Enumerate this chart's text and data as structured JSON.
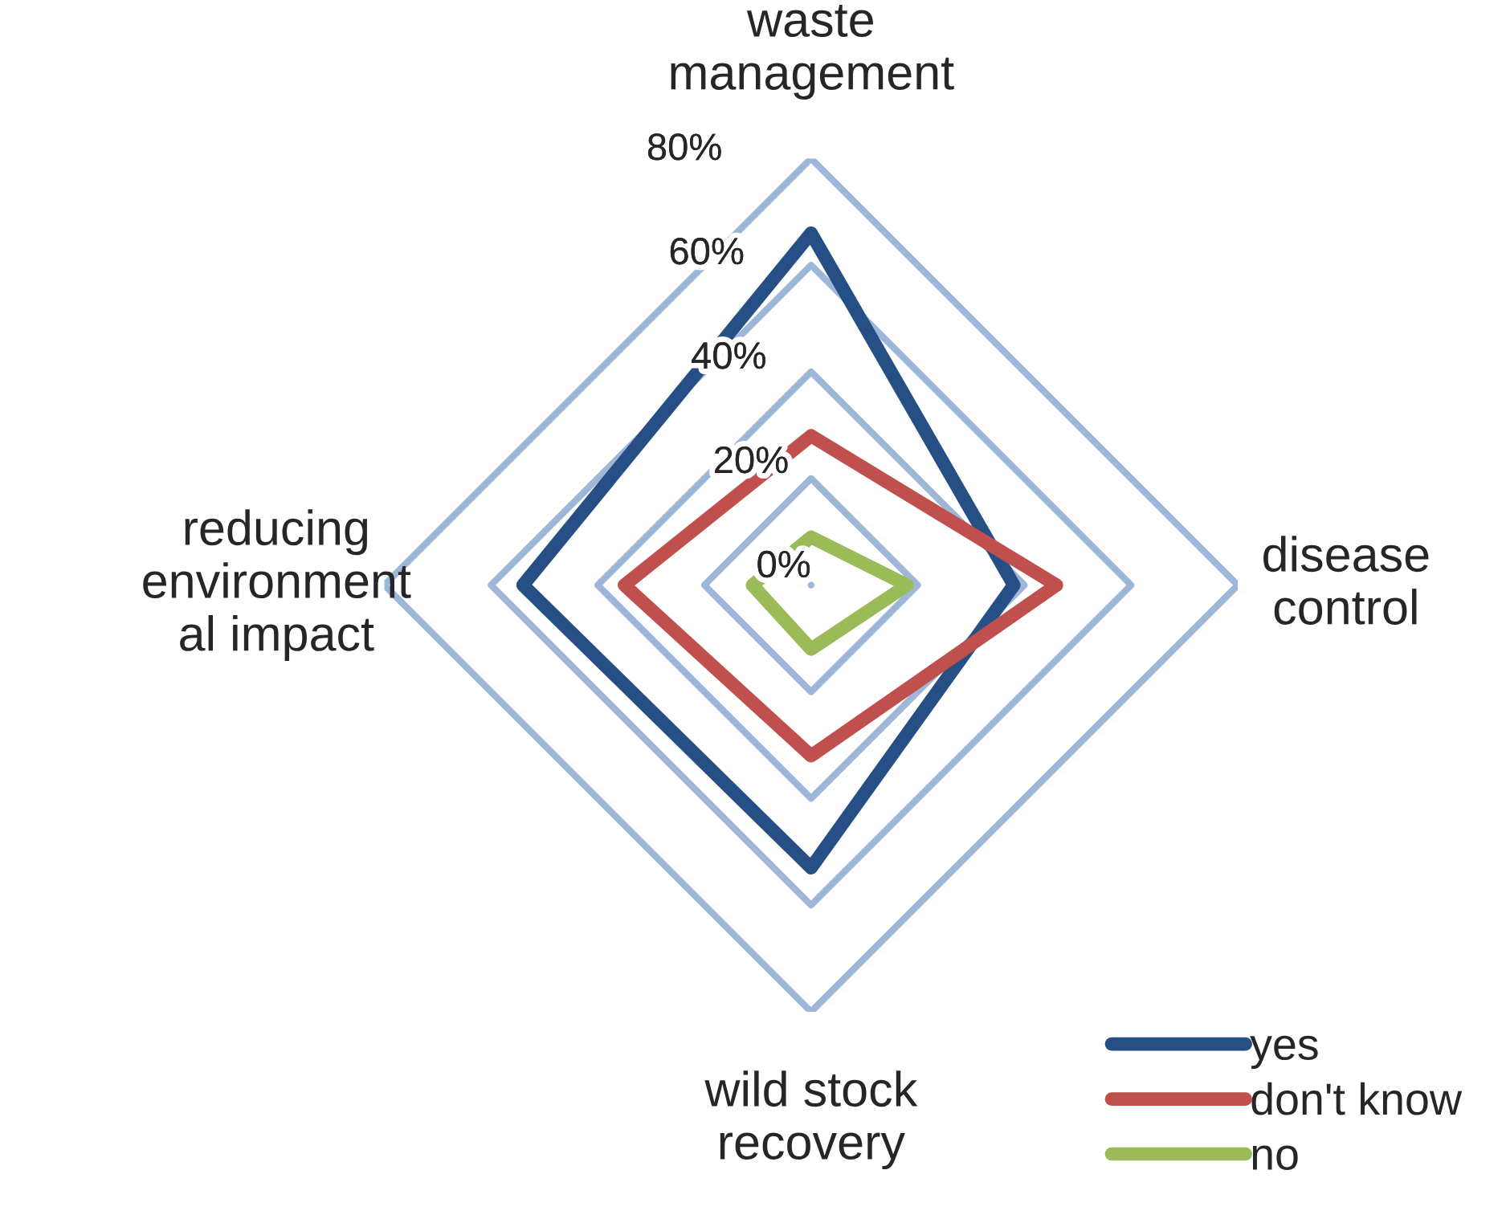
{
  "chart_data": {
    "type": "radar",
    "categories": [
      "waste\nmanagement",
      "disease\ncontrol",
      "wild stock\nrecovery",
      "reducing\nenvironment\nal impact"
    ],
    "series": [
      {
        "name": "yes",
        "color": "#254f85",
        "values": [
          66,
          38,
          53,
          54
        ]
      },
      {
        "name": "don't know",
        "color": "#c0504d",
        "values": [
          28,
          46,
          32,
          35
        ]
      },
      {
        "name": "no",
        "color": "#9bbb59",
        "values": [
          9,
          18,
          12,
          11
        ]
      }
    ],
    "ylim": [
      0,
      80
    ],
    "yticks": [
      {
        "value": 0,
        "label": "0%"
      },
      {
        "value": 20,
        "label": "20%"
      },
      {
        "value": 40,
        "label": "40%"
      },
      {
        "value": 60,
        "label": "60%"
      },
      {
        "value": 80,
        "label": "80%"
      }
    ],
    "grid": true,
    "legend": "bottom right"
  }
}
